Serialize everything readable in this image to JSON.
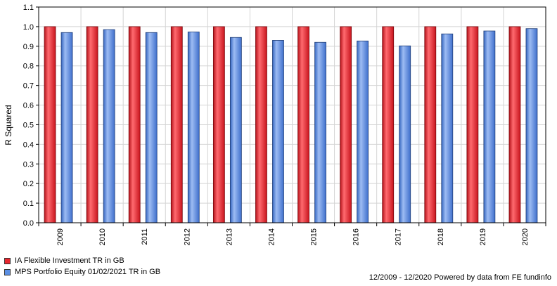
{
  "chart_data": {
    "type": "bar",
    "ylabel": "R Squared",
    "xlabel": "",
    "title": "",
    "ylim": [
      0,
      1.1
    ],
    "yticks": [
      "0.0",
      "0.1",
      "0.2",
      "0.3",
      "0.4",
      "0.5",
      "0.6",
      "0.7",
      "0.8",
      "0.9",
      "1.0",
      "1.1"
    ],
    "categories": [
      "2009",
      "2010",
      "2011",
      "2012",
      "2013",
      "2014",
      "2015",
      "2016",
      "2017",
      "2018",
      "2019",
      "2020"
    ],
    "series": [
      {
        "name": "IA Flexible Investment TR in GB",
        "color": "#e8262e",
        "values": [
          1.0,
          1.0,
          1.0,
          1.0,
          1.0,
          1.0,
          1.0,
          1.0,
          1.0,
          1.0,
          1.0,
          1.0
        ]
      },
      {
        "name": "MPS Portfolio Equity 01/02/2021 TR in GB",
        "color": "#5b8fe3",
        "values": [
          0.97,
          0.985,
          0.97,
          0.973,
          0.945,
          0.93,
          0.92,
          0.927,
          0.902,
          0.963,
          0.978,
          0.99
        ]
      }
    ],
    "grid": true,
    "legend_position": "bottom-left"
  },
  "legend": {
    "items": [
      {
        "label": "IA Flexible Investment TR in GB",
        "color": "#e8262e"
      },
      {
        "label": "MPS Portfolio Equity 01/02/2021 TR in GB",
        "color": "#5b8fe3"
      }
    ]
  },
  "footer": {
    "text": "12/2009 - 12/2020 Powered by data from FE fundinfo"
  }
}
